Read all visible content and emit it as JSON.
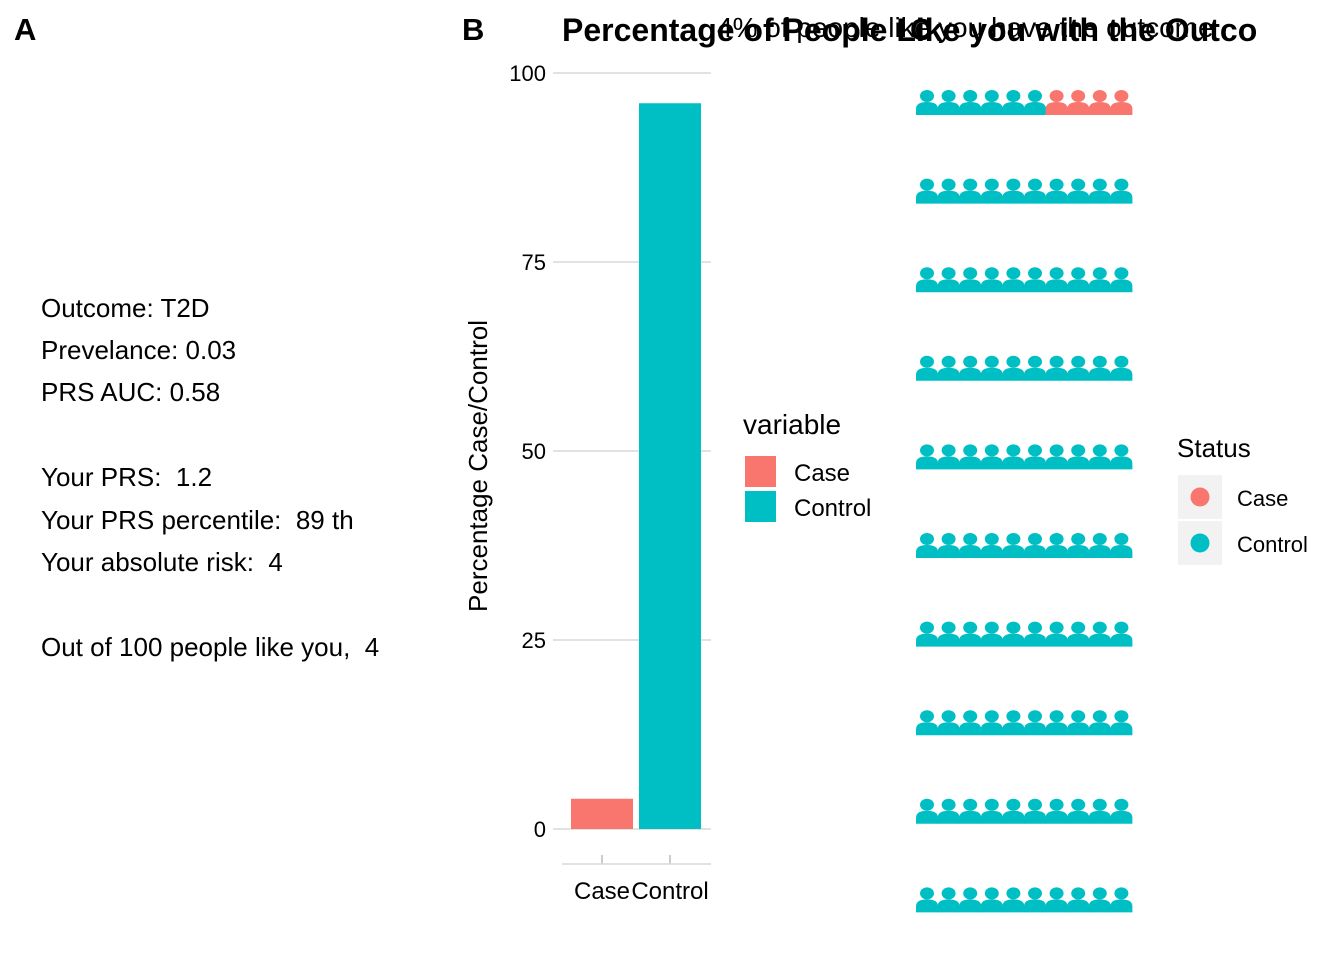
{
  "panel_labels": {
    "a": "A",
    "b": "B",
    "c": "C"
  },
  "info_lines": [
    "Outcome: T2D",
    "Prevelance: 0.03",
    "PRS AUC: 0.58",
    "Your PRS:  1.2",
    "Your PRS percentile:  89 th",
    "Your absolute risk:  4",
    "Out of 100 people like you,  4"
  ],
  "colors": {
    "case": "#F8766D",
    "control": "#00BFC4",
    "grid": "#d9d9d9"
  },
  "icon_names": {
    "person": "person-icon"
  },
  "chart_data": [
    {
      "type": "bar",
      "categories": [
        "Case",
        "Control"
      ],
      "values": [
        4,
        96
      ],
      "ylabel": "Percentage Case/Control",
      "xlabel": "",
      "ylim": [
        0,
        100
      ],
      "yticks": [
        0,
        25,
        50,
        75,
        100
      ],
      "grid": true,
      "legend": {
        "title": "variable",
        "items": [
          "Case",
          "Control"
        ],
        "placement": "right"
      }
    },
    {
      "type": "waffle",
      "title": "Percentage of People Like you with the Outco",
      "subtitle": "4% of people like you have the outcome",
      "rows": 10,
      "cols": 10,
      "case_count": 4,
      "control_count": 96,
      "legend": {
        "title": "Status",
        "items": [
          "Case",
          "Control"
        ],
        "placement": "right"
      }
    }
  ]
}
